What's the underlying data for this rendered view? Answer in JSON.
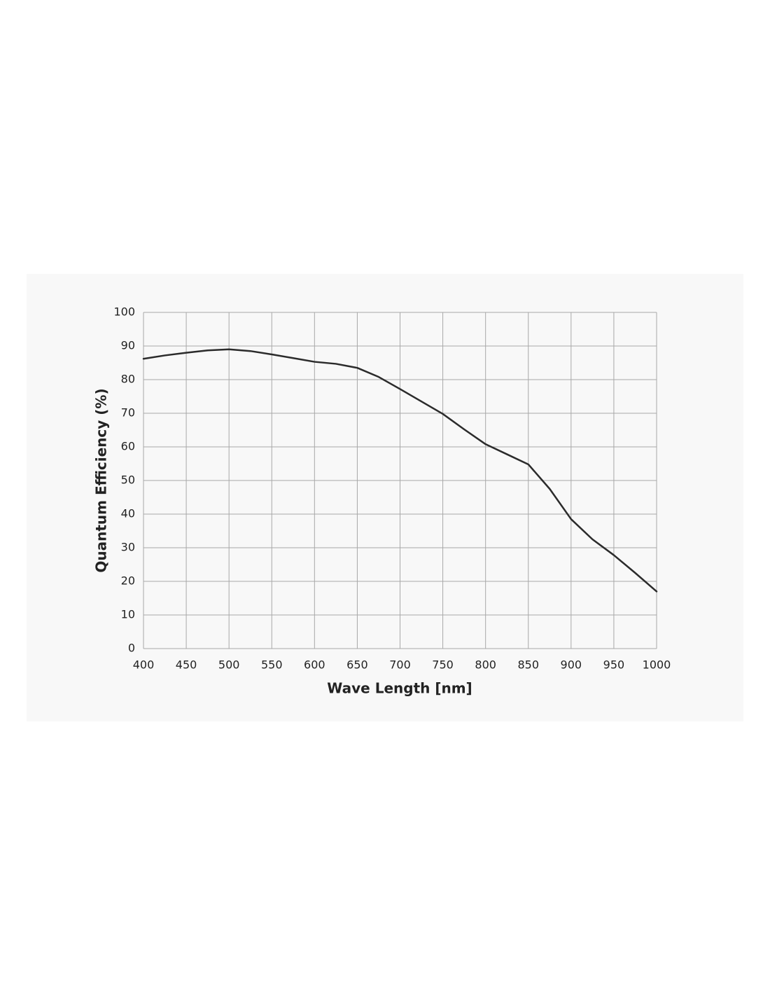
{
  "chart_data": {
    "type": "line",
    "xlabel": "Wave Length [nm]",
    "ylabel": "Quantum Efficiency (%)",
    "x": [
      400,
      425,
      450,
      475,
      500,
      525,
      550,
      575,
      600,
      625,
      650,
      675,
      700,
      725,
      750,
      775,
      800,
      825,
      850,
      875,
      900,
      925,
      950,
      975,
      1000
    ],
    "series": [
      {
        "color": "#2b2b2b",
        "values": [
          86.2,
          87.2,
          88.0,
          88.7,
          89.0,
          88.5,
          87.5,
          86.4,
          85.3,
          84.7,
          83.5,
          80.8,
          77.2,
          73.5,
          69.8,
          65.2,
          60.8,
          57.8,
          54.8,
          47.5,
          38.5,
          32.5,
          27.8,
          22.5,
          17.0
        ]
      }
    ],
    "xlim": [
      400,
      1000
    ],
    "xticks": [
      400,
      450,
      500,
      550,
      600,
      650,
      700,
      750,
      800,
      850,
      900,
      950,
      1000
    ],
    "ylim": [
      0,
      100
    ],
    "yticks": [
      0,
      10,
      20,
      30,
      40,
      50,
      60,
      70,
      80,
      90,
      100
    ],
    "grid": true
  }
}
